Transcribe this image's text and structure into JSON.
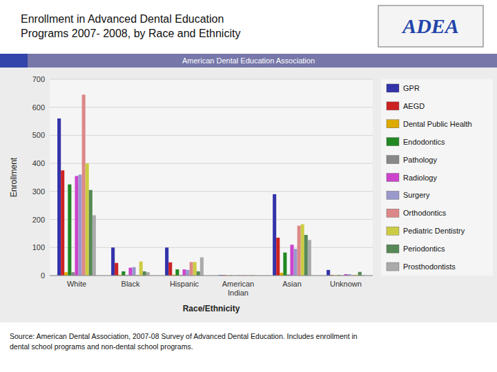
{
  "chart_data": {
    "type": "bar",
    "title": "Enrollment in Advanced Dental Education\nPrograms 2007- 2008, by Race and Ethnicity",
    "subtitle": "American Dental Education Association",
    "xlabel": "Race/Ethnicity",
    "ylabel": "Enrollment",
    "annotations": [
      "ADEA",
      "Source: American Dental Association, 2007-08 Survey of Advanced Dental Education.  Includes enrollment in\ndental school programs and non-dental school programs."
    ],
    "categories": [
      "White",
      "Black",
      "Hispanic",
      "American\nIndian",
      "Asian",
      "Unknown"
    ],
    "series": [
      {
        "name": "GPR",
        "color": "#3333aa",
        "values": [
          560,
          100,
          100,
          2,
          290,
          20
        ]
      },
      {
        "name": "AEGD",
        "color": "#cc2222",
        "values": [
          375,
          45,
          47,
          2,
          135,
          2
        ]
      },
      {
        "name": "Dental Public Health",
        "color": "#ddaa00",
        "values": [
          12,
          3,
          3,
          1,
          10,
          1
        ]
      },
      {
        "name": "Endodontics",
        "color": "#228822",
        "values": [
          325,
          15,
          22,
          1,
          82,
          2
        ]
      },
      {
        "name": "Pathology",
        "color": "#888888",
        "values": [
          12,
          2,
          2,
          0,
          4,
          1
        ]
      },
      {
        "name": "Radiology",
        "color": "#cc44cc",
        "values": [
          355,
          28,
          22,
          1,
          110,
          5
        ]
      },
      {
        "name": "Surgery",
        "color": "#9999cc",
        "values": [
          360,
          30,
          20,
          1,
          95,
          5
        ]
      },
      {
        "name": "Orthodontics",
        "color": "#dd8888",
        "values": [
          645,
          2,
          48,
          2,
          178,
          2
        ]
      },
      {
        "name": "Pediatric Dentistry",
        "color": "#cccc44",
        "values": [
          400,
          50,
          48,
          1,
          183,
          3
        ]
      },
      {
        "name": "Periodontics",
        "color": "#558855",
        "values": [
          305,
          15,
          15,
          1,
          145,
          13
        ]
      },
      {
        "name": "Prosthodontists",
        "color": "#aaaaaa",
        "values": [
          215,
          12,
          65,
          1,
          127,
          2
        ]
      }
    ],
    "ylim": [
      0,
      700
    ],
    "yticks": [
      0,
      100,
      200,
      300,
      400,
      500,
      600,
      700
    ],
    "grid": true,
    "legend": "right"
  }
}
